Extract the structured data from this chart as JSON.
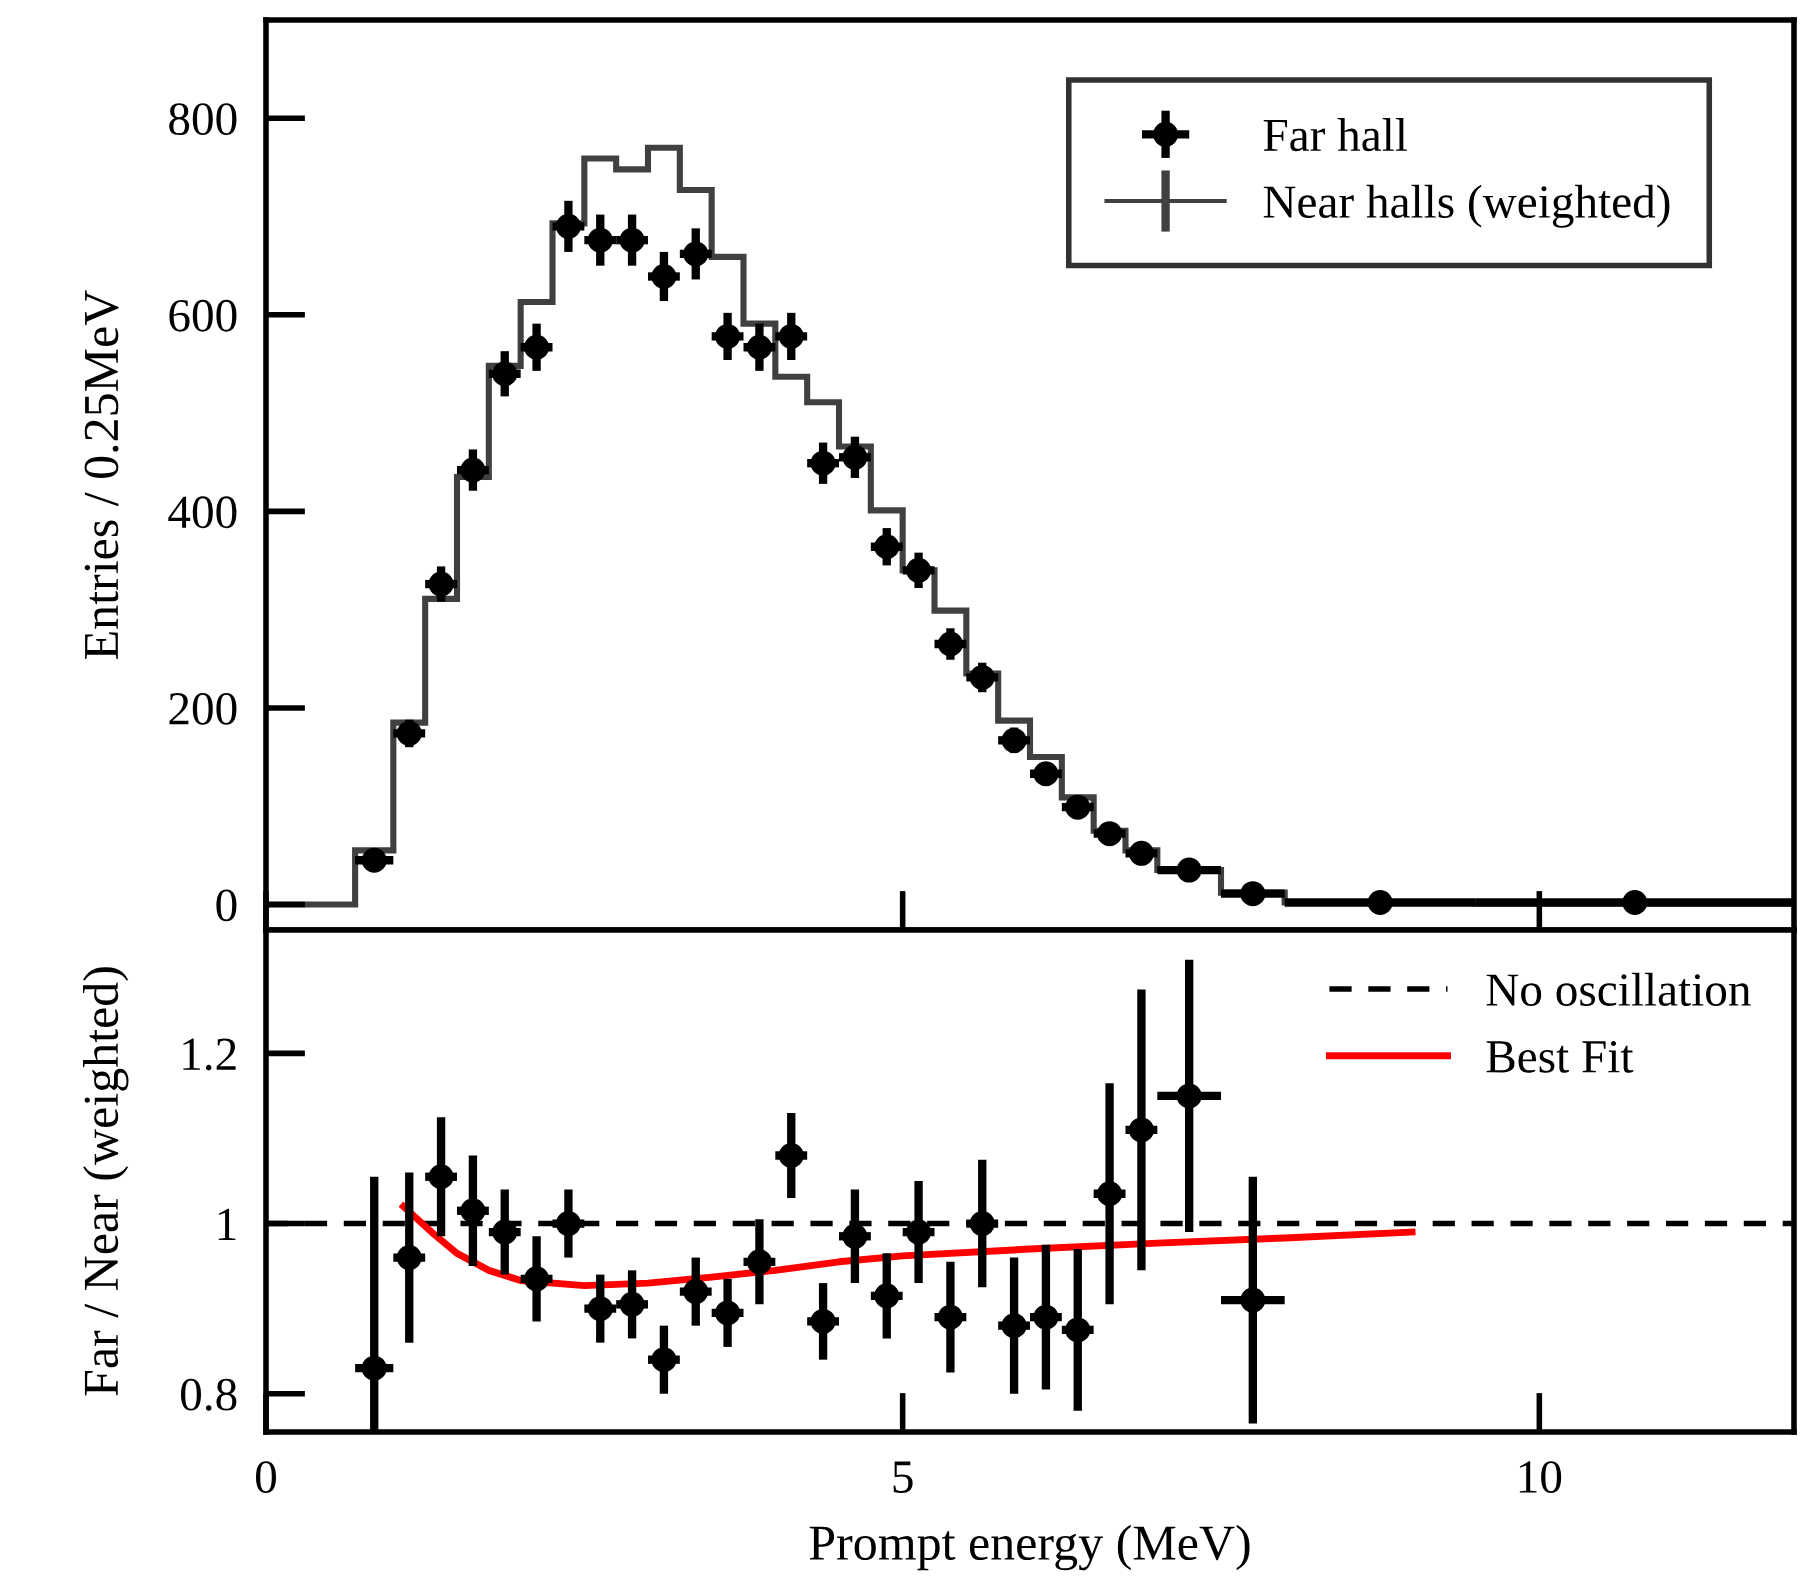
{
  "chart_data": [
    {
      "type": "histogram",
      "ylabel": "Entries / 0.25MeV",
      "xlim": [
        0,
        12
      ],
      "ylim": [
        -26,
        900
      ],
      "xticks": [
        0,
        5,
        10
      ],
      "yticks": [
        0,
        200,
        400,
        600,
        800
      ],
      "tick_labels": "y",
      "legend": "top right",
      "bins": [
        0,
        0.7,
        1.0,
        1.25,
        1.5,
        1.75,
        2.0,
        2.25,
        2.5,
        2.75,
        3.0,
        3.25,
        3.5,
        3.75,
        4.0,
        4.25,
        4.5,
        4.75,
        5.0,
        5.25,
        5.5,
        5.75,
        6.0,
        6.25,
        6.5,
        6.75,
        7.0,
        7.5,
        8.0,
        9.5,
        12
      ],
      "series": [
        {
          "name": "Far hall",
          "type": "scatter",
          "marker": "circle",
          "color": "#000000",
          "x": [
            0.85,
            1.125,
            1.375,
            1.625,
            1.875,
            2.125,
            2.375,
            2.625,
            2.875,
            3.125,
            3.375,
            3.625,
            3.875,
            4.125,
            4.375,
            4.625,
            4.875,
            5.125,
            5.375,
            5.625,
            5.875,
            6.125,
            6.375,
            6.625,
            6.875,
            7.25,
            7.75,
            8.75,
            10.75
          ],
          "values": [
            45,
            174,
            326,
            442,
            540,
            567,
            690,
            676,
            676,
            639,
            662,
            578,
            567,
            578,
            449,
            455,
            364,
            340,
            265,
            231,
            167,
            133,
            99,
            72,
            52,
            35,
            11,
            2,
            2
          ],
          "errors": [
            8,
            14,
            18,
            21,
            23,
            24,
            26,
            26,
            26,
            25,
            26,
            24,
            24,
            24,
            21,
            21,
            19,
            18,
            16,
            15,
            13,
            12,
            10,
            9,
            7,
            6,
            3,
            null,
            null
          ],
          "xerrors": [
            0.15,
            0.125,
            0.125,
            0.125,
            0.125,
            0.125,
            0.125,
            0.125,
            0.125,
            0.125,
            0.125,
            0.125,
            0.125,
            0.125,
            0.125,
            0.125,
            0.125,
            0.125,
            0.125,
            0.125,
            0.125,
            0.125,
            0.125,
            0.125,
            0.125,
            0.25,
            0.25,
            0.75,
            1.25
          ]
        },
        {
          "name": "Near halls (weighted)",
          "color": "#404040",
          "values": [
            0,
            55,
            185,
            311,
            435,
            548,
            613,
            693,
            759,
            748,
            770,
            727,
            659,
            591,
            537,
            511,
            466,
            401,
            340,
            299,
            235,
            187,
            150,
            109,
            75,
            55,
            35,
            12,
            2,
            1
          ]
        }
      ]
    },
    {
      "type": "scatter",
      "xlabel": "Prompt energy (MeV)",
      "ylabel": "Far / Near (weighted)",
      "xlim": [
        0,
        12
      ],
      "ylim": [
        0.755,
        1.345
      ],
      "xticks": [
        0,
        5,
        10
      ],
      "yticks": [
        0.8,
        1,
        1.2
      ],
      "legend": "top right",
      "ref_lines": [
        {
          "axis": "y",
          "value": 1,
          "label": "No oscillation",
          "color": "#000000",
          "line_style": "dashed"
        }
      ],
      "series": [
        {
          "color": "#000000",
          "marker": "circle",
          "x": [
            0.85,
            1.125,
            1.375,
            1.625,
            1.875,
            2.125,
            2.375,
            2.625,
            2.875,
            3.125,
            3.375,
            3.625,
            3.875,
            4.125,
            4.375,
            4.625,
            4.875,
            5.125,
            5.375,
            5.625,
            5.875,
            6.125,
            6.375,
            6.625,
            6.875,
            7.25,
            7.75
          ],
          "values": [
            0.83,
            0.96,
            1.055,
            1.015,
            0.99,
            0.935,
            1.0,
            0.9,
            0.905,
            0.84,
            0.92,
            0.895,
            0.955,
            1.08,
            0.885,
            0.985,
            0.915,
            0.99,
            0.89,
            1.0,
            0.88,
            0.89,
            0.875,
            1.035,
            1.11,
            1.15,
            0.91
          ],
          "errors": [
            [
              0.755,
              1.055
            ],
            0.1,
            0.07,
            0.065,
            0.05,
            0.05,
            0.04,
            0.04,
            0.04,
            0.04,
            0.04,
            0.04,
            0.05,
            0.05,
            0.045,
            0.055,
            0.05,
            0.06,
            0.065,
            0.075,
            0.08,
            0.085,
            0.095,
            0.13,
            0.165,
            0.16,
            0.145
          ],
          "xerrors": [
            0.15,
            0.125,
            0.125,
            0.125,
            0.125,
            0.125,
            0.125,
            0.125,
            0.125,
            0.125,
            0.125,
            0.125,
            0.125,
            0.125,
            0.125,
            0.125,
            0.125,
            0.125,
            0.125,
            0.125,
            0.125,
            0.125,
            0.125,
            0.125,
            0.125,
            0.25,
            0.25
          ]
        },
        {
          "name": "Best Fit",
          "type": "line",
          "color": "#ff0000",
          "x": [
            1.08,
            1.3,
            1.5,
            1.75,
            2.0,
            2.5,
            3.0,
            3.5,
            4.0,
            4.5,
            5.0,
            6.0,
            7.0,
            8.0,
            9.0
          ],
          "values": [
            1.02,
            0.99,
            0.965,
            0.945,
            0.933,
            0.927,
            0.93,
            0.937,
            0.945,
            0.955,
            0.962,
            0.97,
            0.977,
            0.983,
            0.99
          ]
        }
      ]
    }
  ]
}
